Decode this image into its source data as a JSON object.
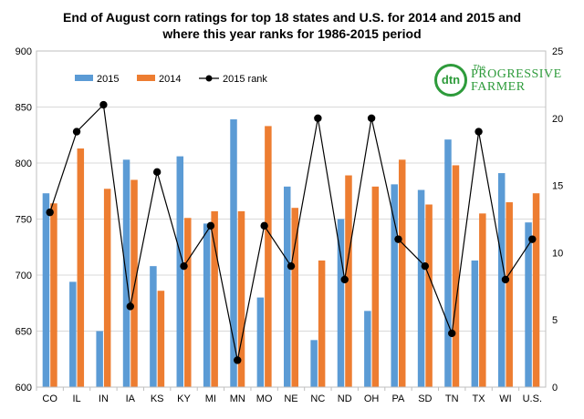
{
  "title_line1": "End of August corn ratings for top 18 states and U.S. for 2014 and 2015 and",
  "title_line2": "where this year ranks for 1986-2015 period",
  "logo": {
    "mark": "dtn",
    "the": "The",
    "line1": "PROGRESSIVE",
    "line2": "FARMER"
  },
  "colors": {
    "s2015": "#5b9bd5",
    "s2014": "#ed7d31",
    "rank": "#000000",
    "grid": "#d9d9d9"
  },
  "chart_data": {
    "type": "bar",
    "title": "End of August corn ratings for top 18 states and U.S. for 2014 and 2015 and where this year ranks for 1986-2015 period",
    "categories": [
      "CO",
      "IL",
      "IN",
      "IA",
      "KS",
      "KY",
      "MI",
      "MN",
      "MO",
      "NE",
      "NC",
      "ND",
      "OH",
      "PA",
      "SD",
      "TN",
      "TX",
      "WI",
      "U.S."
    ],
    "series": [
      {
        "name": "2015",
        "type": "bar",
        "axis": "left",
        "values": [
          773,
          694,
          650,
          803,
          708,
          806,
          746,
          839,
          680,
          779,
          642,
          750,
          668,
          781,
          776,
          821,
          713,
          791,
          747
        ]
      },
      {
        "name": "2014",
        "type": "bar",
        "axis": "left",
        "values": [
          764,
          813,
          777,
          785,
          686,
          751,
          757,
          757,
          833,
          760,
          713,
          789,
          779,
          803,
          763,
          798,
          755,
          765,
          773
        ]
      },
      {
        "name": "2015 rank",
        "type": "line",
        "axis": "right",
        "values": [
          13,
          19,
          21,
          6,
          16,
          9,
          12,
          2,
          12,
          9,
          20,
          8,
          20,
          11,
          9,
          4,
          19,
          8,
          11
        ]
      }
    ],
    "ylim": [
      600,
      900
    ],
    "yticks": [
      600,
      650,
      700,
      750,
      800,
      850,
      900
    ],
    "y2lim": [
      0,
      25
    ],
    "y2ticks": [
      0,
      5,
      10,
      15,
      20,
      25
    ],
    "grid": "horizontal",
    "legend": "top-left"
  }
}
